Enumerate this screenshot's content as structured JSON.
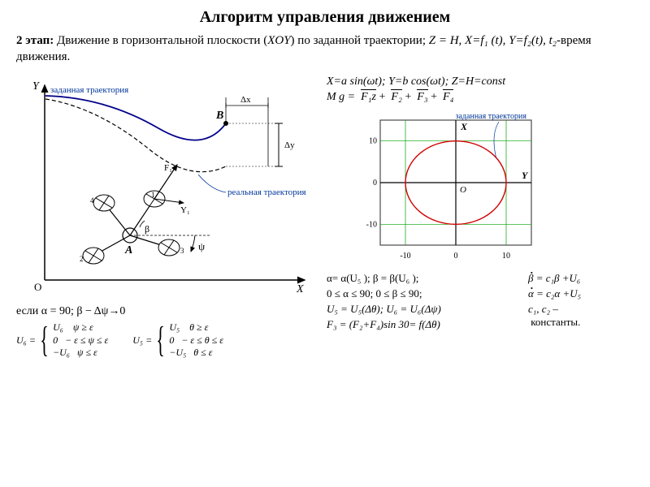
{
  "title": "Алгоритм управления движением",
  "stage": {
    "label": "2 этап:",
    "text_a": "Движение в горизонтальной плоскости (",
    "xoy": "XOY",
    "text_b": ") по заданной траектории;  ",
    "formula": "Z = H, X=f₁ (t), Y=f₂(t), t₂",
    "text_c": "-время движения."
  },
  "eq_xy": "X=a sin(ωt);  Y=b cos(ωt); Z=H=const",
  "eq_mg_pre": "M  g = ",
  "eq_mg_terms": [
    "F₁z",
    "F₂",
    "F₃",
    "F₄"
  ],
  "left_diagram": {
    "Y_label": "Y",
    "X_label": "X",
    "O_label": "O",
    "B_label": "B",
    "A_label": "A",
    "dx_label": "Δх",
    "dy_label": "Δу",
    "trajectory_label": "заданная траектория",
    "real_label": "реальная траектория",
    "F1_label": "F₁",
    "Y1_label": "Y₁",
    "beta_label": "β",
    "psi_label": "ψ",
    "rotor_labels": [
      "1",
      "2",
      "3",
      "4"
    ]
  },
  "chart": {
    "title_label": "заданная траектория",
    "X_label": "X",
    "Y_label": "Y",
    "O_label": "O",
    "xlim": [
      -15,
      15
    ],
    "ylim": [
      -15,
      15
    ],
    "ticks": [
      -10,
      0,
      10
    ],
    "circle_color": "#d00000",
    "grid_color": "#00a000",
    "axis_color": "#000000",
    "bg_color": "#ffffff",
    "border_color": "#4a4a4a"
  },
  "cond_line": "если   α = 90;   β − Δψ→0",
  "pw6": {
    "lhs": "U₆ =",
    "rows": [
      {
        "v": "U₆",
        "c": "ψ ≥ ε"
      },
      {
        "v": "0",
        "c": "− ε ≤ ψ ≤ ε"
      },
      {
        "v": "−U₆",
        "c": "ψ ≤ ε"
      }
    ]
  },
  "pw5": {
    "lhs": "U₅ =",
    "rows": [
      {
        "v": "U₅",
        "c": "θ ≥ ε"
      },
      {
        "v": "0",
        "c": "− ε ≤ θ ≤ ε"
      },
      {
        "v": "−U₅",
        "c": "θ ≤ ε"
      }
    ]
  },
  "right_eqs": {
    "l1": "α= α(U₅ );  β = β(U₆ );",
    "l2": "0 ≤  α  ≤ 90;  0 ≤ β ≤ 90;",
    "l3": "U₅ = U₅(Δθ);   U₆ = U₆(Δψ)",
    "l4": "F₃ =  (F₂+F₄)sin 30= f(Δθ)",
    "r1": "β = c₁β +U₆",
    "r2": "α = c₂α +U₅",
    "r3a": "c₁, c₂ –",
    "r3b": "константы."
  }
}
